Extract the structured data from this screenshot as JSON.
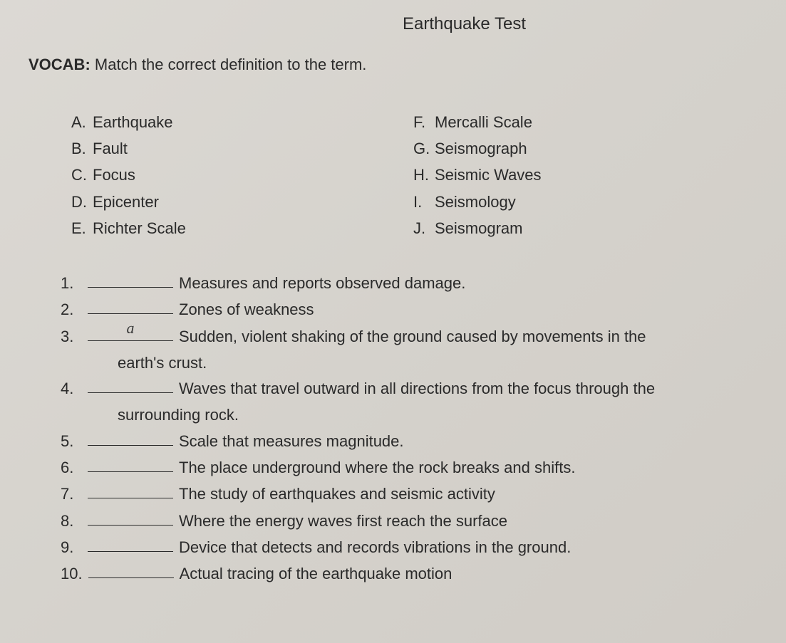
{
  "title": "Earthquake Test",
  "vocab_label": "VOCAB:",
  "vocab_instruction": "Match the correct definition to the term.",
  "terms_left": [
    {
      "letter": "A.",
      "label": "Earthquake"
    },
    {
      "letter": "B.",
      "label": "Fault"
    },
    {
      "letter": "C.",
      "label": "Focus"
    },
    {
      "letter": "D.",
      "label": "Epicenter"
    },
    {
      "letter": "E.",
      "label": "Richter Scale"
    }
  ],
  "terms_right": [
    {
      "letter": "F.",
      "label": "Mercalli Scale"
    },
    {
      "letter": "G.",
      "label": "Seismograph"
    },
    {
      "letter": "H.",
      "label": "Seismic Waves"
    },
    {
      "letter": "I.",
      "label": "Seismology"
    },
    {
      "letter": "J.",
      "label": "Seismogram"
    }
  ],
  "questions": [
    {
      "num": "1.",
      "answer": "",
      "text": "Measures and reports observed damage.",
      "continuation": ""
    },
    {
      "num": "2.",
      "answer": "",
      "text": "Zones of weakness",
      "continuation": ""
    },
    {
      "num": "3.",
      "answer": "a",
      "text": "Sudden, violent shaking of the ground caused by movements in the",
      "continuation": "earth's crust."
    },
    {
      "num": "4.",
      "answer": "",
      "text": "Waves that travel outward in all directions from the focus through the",
      "continuation": "surrounding rock."
    },
    {
      "num": "5.",
      "answer": "",
      "text": "Scale that measures magnitude.",
      "continuation": ""
    },
    {
      "num": "6.",
      "answer": "",
      "text": "The place underground where the rock breaks and shifts.",
      "continuation": ""
    },
    {
      "num": "7.",
      "answer": "",
      "text": "The study of earthquakes and seismic activity",
      "continuation": ""
    },
    {
      "num": "8.",
      "answer": "",
      "text": "Where the energy waves first reach the surface",
      "continuation": ""
    },
    {
      "num": "9.",
      "answer": "",
      "text": "Device that detects and records vibrations in the ground.",
      "continuation": ""
    },
    {
      "num": "10.",
      "answer": "",
      "text": "Actual tracing of the earthquake motion",
      "continuation": ""
    }
  ],
  "colors": {
    "background": "#d8d5d0",
    "text": "#2a2a2a",
    "underline": "#2a2a2a"
  },
  "typography": {
    "font_family": "Arial",
    "title_fontsize": 24,
    "body_fontsize": 22
  }
}
